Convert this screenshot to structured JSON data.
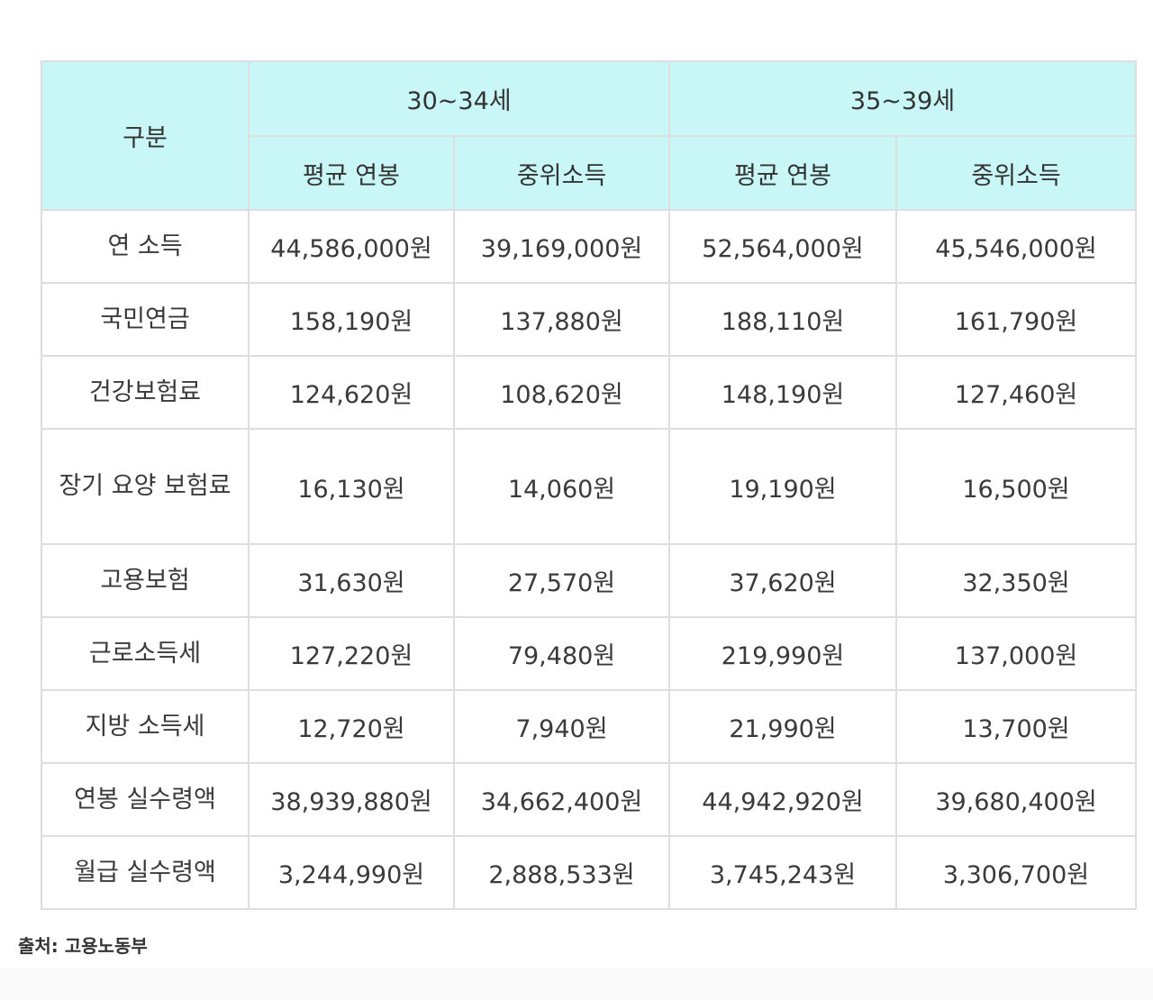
{
  "table": {
    "corner_header": "구분",
    "age_groups": [
      {
        "label": "30~34세"
      },
      {
        "label": "35~39세"
      }
    ],
    "sub_headers": [
      "평균 연봉",
      "중위소득",
      "평균 연봉",
      "중위소득"
    ],
    "rows": [
      {
        "label": "연 소득",
        "values": [
          "44,586,000원",
          "39,169,000원",
          "52,564,000원",
          "45,546,000원"
        ]
      },
      {
        "label": "국민연금",
        "values": [
          "158,190원",
          "137,880원",
          "188,110원",
          "161,790원"
        ]
      },
      {
        "label": "건강보험료",
        "values": [
          "124,620원",
          "108,620원",
          "148,190원",
          "127,460원"
        ]
      },
      {
        "label": "장기 요양 보험료",
        "values": [
          "16,130원",
          "14,060원",
          "19,190원",
          "16,500원"
        ]
      },
      {
        "label": "고용보험",
        "values": [
          "31,630원",
          "27,570원",
          "37,620원",
          "32,350원"
        ]
      },
      {
        "label": "근로소득세",
        "values": [
          "127,220원",
          "79,480원",
          "219,990원",
          "137,000원"
        ]
      },
      {
        "label": "지방 소득세",
        "values": [
          "12,720원",
          "7,940원",
          "21,990원",
          "13,700원"
        ]
      },
      {
        "label": "연봉 실수령액",
        "values": [
          "38,939,880원",
          "34,662,400원",
          "44,942,920원",
          "39,680,400원"
        ]
      },
      {
        "label": "월급 실수령액",
        "values": [
          "3,244,990원",
          "2,888,533원",
          "3,745,243원",
          "3,306,700원"
        ]
      }
    ]
  },
  "source": "출처: 고용노동부",
  "colors": {
    "header_bg": "#c9f6f6",
    "border": "#dedede",
    "text": "#333333"
  }
}
